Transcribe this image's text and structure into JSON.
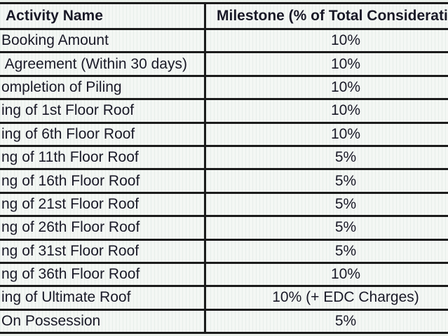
{
  "table": {
    "columns": {
      "activity_header": "Activity Name",
      "milestone_header": "Milestone (% of Total Considerati"
    },
    "rows": [
      {
        "activity": "Booking Amount",
        "milestone": "10%"
      },
      {
        "activity": " Agreement (Within 30 days)",
        "milestone": "10%"
      },
      {
        "activity": "ompletion of Piling",
        "milestone": "10%"
      },
      {
        "activity": "ing of 1st Floor Roof",
        "milestone": "10%"
      },
      {
        "activity": "ing of 6th Floor Roof",
        "milestone": "10%"
      },
      {
        "activity": "ng of 11th Floor Roof",
        "milestone": "5%"
      },
      {
        "activity": "ng of 16th Floor Roof",
        "milestone": "5%"
      },
      {
        "activity": "ng of 21st Floor Roof",
        "milestone": "5%"
      },
      {
        "activity": "ng of 26th Floor Roof",
        "milestone": "5%"
      },
      {
        "activity": "ng of 31st Floor Roof",
        "milestone": "5%"
      },
      {
        "activity": "ng of 36th Floor Roof",
        "milestone": "10%"
      },
      {
        "activity": "ing of Ultimate Roof",
        "milestone": "10% (+ EDC Charges)"
      },
      {
        "activity": "On Possession",
        "milestone": "5%"
      }
    ],
    "colors": {
      "border": "#1b1b1b",
      "text": "#191927",
      "cell_background": "#f4f7f4",
      "page_background": "#eaf0ea"
    }
  }
}
